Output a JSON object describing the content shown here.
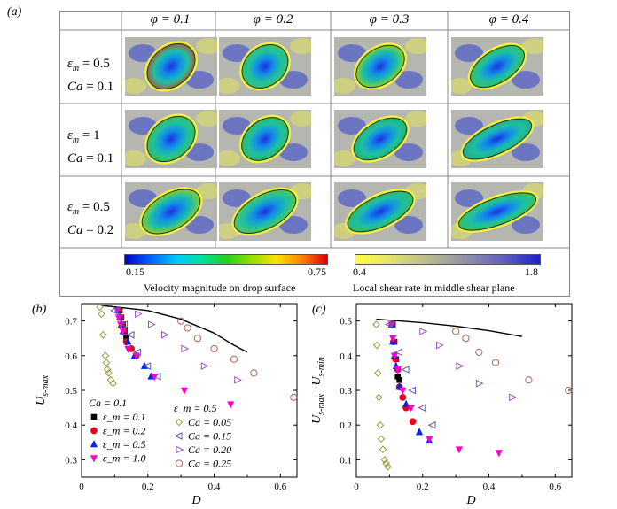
{
  "panel_a": {
    "label": "(a)",
    "columns": [
      "φ = 0.1",
      "φ = 0.2",
      "φ = 0.3",
      "φ = 0.4"
    ],
    "rows": [
      {
        "eps": "ε",
        "eps_sub": "m",
        "eps_val": "= 0.5",
        "ca": "Ca",
        "ca_val": "= 0.1"
      },
      {
        "eps": "ε",
        "eps_sub": "m",
        "eps_val": "= 1",
        "ca": "Ca",
        "ca_val": "= 0.1"
      },
      {
        "eps": "ε",
        "eps_sub": "m",
        "eps_val": "= 0.5",
        "ca": "Ca",
        "ca_val": "= 0.2"
      }
    ],
    "colorbar_velocity": {
      "min": "0.15",
      "max": "0.75",
      "title": "Velocity magnitude on drop surface"
    },
    "colorbar_shear": {
      "min": "0.4",
      "max": "1.8",
      "title": "Local shear rate in middle shear plane"
    }
  },
  "chart_data": [
    {
      "panel": "(b)",
      "type": "scatter",
      "xlabel": "D",
      "ylabel_main": "U",
      "ylabel_sub": "s-max",
      "xlim": [
        0,
        0.65
      ],
      "ylim": [
        0.25,
        0.75
      ],
      "xticks": [
        "0",
        "0.2",
        "0.4",
        "0.6"
      ],
      "yticks": [
        "0.3",
        "0.4",
        "0.5",
        "0.6",
        "0.7"
      ],
      "series": [
        {
          "name": "ε_m = 0.1",
          "marker": "square",
          "color": "#000000",
          "points": [
            [
              0.115,
              0.73
            ],
            [
              0.12,
              0.71
            ],
            [
              0.125,
              0.69
            ],
            [
              0.13,
              0.67
            ],
            [
              0.135,
              0.65
            ]
          ]
        },
        {
          "name": "ε_m = 0.2",
          "marker": "circle",
          "color": "#e8001c",
          "points": [
            [
              0.112,
              0.73
            ],
            [
              0.118,
              0.71
            ],
            [
              0.122,
              0.69
            ],
            [
              0.128,
              0.67
            ],
            [
              0.135,
              0.64
            ],
            [
              0.15,
              0.62
            ],
            [
              0.165,
              0.6
            ]
          ]
        },
        {
          "name": "ε_m = 0.5",
          "marker": "triangle-up",
          "color": "#0024e6",
          "points": [
            [
              0.11,
              0.73
            ],
            [
              0.115,
              0.71
            ],
            [
              0.12,
              0.69
            ],
            [
              0.125,
              0.67
            ],
            [
              0.14,
              0.64
            ],
            [
              0.16,
              0.6
            ],
            [
              0.19,
              0.57
            ],
            [
              0.21,
              0.54
            ]
          ]
        },
        {
          "name": "ε_m = 1.0",
          "marker": "triangle-down",
          "color": "#ff00cc",
          "points": [
            [
              0.108,
              0.73
            ],
            [
              0.112,
              0.71
            ],
            [
              0.118,
              0.69
            ],
            [
              0.125,
              0.67
            ],
            [
              0.14,
              0.62
            ],
            [
              0.165,
              0.6
            ],
            [
              0.22,
              0.54
            ],
            [
              0.31,
              0.5
            ],
            [
              0.45,
              0.46
            ]
          ]
        },
        {
          "name": "Ca = 0.05",
          "marker": "diamond-open",
          "color": "#9a9a40",
          "points": [
            [
              0.055,
              0.74
            ],
            [
              0.06,
              0.72
            ],
            [
              0.065,
              0.66
            ],
            [
              0.072,
              0.6
            ],
            [
              0.075,
              0.58
            ],
            [
              0.078,
              0.56
            ],
            [
              0.082,
              0.55
            ],
            [
              0.088,
              0.53
            ],
            [
              0.095,
              0.52
            ]
          ]
        },
        {
          "name": "Ca = 0.15",
          "marker": "triangle-left-open",
          "color": "#5a5ab4",
          "points": [
            [
              0.1,
              0.73
            ],
            [
              0.13,
              0.69
            ],
            [
              0.15,
              0.66
            ],
            [
              0.17,
              0.61
            ],
            [
              0.2,
              0.57
            ],
            [
              0.23,
              0.54
            ]
          ]
        },
        {
          "name": "Ca = 0.20",
          "marker": "triangle-right-open",
          "color": "#a050c8",
          "points": [
            [
              0.17,
              0.72
            ],
            [
              0.21,
              0.69
            ],
            [
              0.25,
              0.66
            ],
            [
              0.31,
              0.62
            ],
            [
              0.37,
              0.57
            ],
            [
              0.47,
              0.53
            ]
          ]
        },
        {
          "name": "Ca = 0.25",
          "marker": "circle-open",
          "color": "#b46450",
          "points": [
            [
              0.3,
              0.7
            ],
            [
              0.32,
              0.68
            ],
            [
              0.35,
              0.65
            ],
            [
              0.4,
              0.62
            ],
            [
              0.46,
              0.59
            ],
            [
              0.52,
              0.55
            ],
            [
              0.64,
              0.48
            ]
          ]
        }
      ],
      "theory_line": [
        [
          0.06,
          0.745
        ],
        [
          0.2,
          0.73
        ],
        [
          0.3,
          0.705
        ],
        [
          0.4,
          0.665
        ],
        [
          0.46,
          0.63
        ],
        [
          0.5,
          0.61
        ]
      ],
      "legend_left": {
        "title": "Ca = 0.1",
        "entries": [
          "ε_m = 0.1",
          "ε_m = 0.2",
          "ε_m = 0.5",
          "ε_m = 1.0"
        ]
      },
      "legend_right": {
        "title": "ε_m = 0.5",
        "entries": [
          "Ca = 0.05",
          "Ca = 0.15",
          "Ca = 0.20",
          "Ca = 0.25"
        ]
      }
    },
    {
      "panel": "(c)",
      "type": "scatter",
      "xlabel": "D",
      "ylabel_main": "U",
      "ylabel_sub": "s-max",
      "ylabel_main2": "−U",
      "ylabel_sub2": "s-min",
      "xlim": [
        0,
        0.65
      ],
      "ylim": [
        0.05,
        0.55
      ],
      "xticks": [
        "0",
        "0.2",
        "0.4",
        "0.6"
      ],
      "yticks": [
        "0.1",
        "0.2",
        "0.3",
        "0.4",
        "0.5"
      ],
      "series": [
        {
          "name": "ε_m = 0.1",
          "marker": "square",
          "color": "#000000",
          "points": [
            [
              0.11,
              0.49
            ],
            [
              0.115,
              0.44
            ],
            [
              0.12,
              0.39
            ],
            [
              0.125,
              0.34
            ],
            [
              0.13,
              0.33
            ]
          ]
        },
        {
          "name": "ε_m = 0.2",
          "marker": "circle",
          "color": "#e8001c",
          "points": [
            [
              0.108,
              0.49
            ],
            [
              0.112,
              0.44
            ],
            [
              0.118,
              0.39
            ],
            [
              0.125,
              0.36
            ],
            [
              0.13,
              0.31
            ],
            [
              0.14,
              0.28
            ],
            [
              0.15,
              0.25
            ],
            [
              0.17,
              0.21
            ]
          ]
        },
        {
          "name": "ε_m = 0.5",
          "marker": "triangle-up",
          "color": "#0024e6",
          "points": [
            [
              0.107,
              0.49
            ],
            [
              0.11,
              0.44
            ],
            [
              0.115,
              0.4
            ],
            [
              0.12,
              0.37
            ],
            [
              0.13,
              0.31
            ],
            [
              0.15,
              0.26
            ],
            [
              0.19,
              0.18
            ],
            [
              0.22,
              0.155
            ]
          ]
        },
        {
          "name": "ε_m = 1.0",
          "marker": "triangle-down",
          "color": "#ff00cc",
          "points": [
            [
              0.106,
              0.49
            ],
            [
              0.11,
              0.45
            ],
            [
              0.115,
              0.4
            ],
            [
              0.125,
              0.36
            ],
            [
              0.14,
              0.3
            ],
            [
              0.165,
              0.25
            ],
            [
              0.22,
              0.16
            ],
            [
              0.31,
              0.13
            ],
            [
              0.43,
              0.12
            ]
          ]
        },
        {
          "name": "Ca = 0.05",
          "marker": "diamond-open",
          "color": "#9a9a40",
          "points": [
            [
              0.06,
              0.49
            ],
            [
              0.062,
              0.43
            ],
            [
              0.065,
              0.35
            ],
            [
              0.068,
              0.28
            ],
            [
              0.072,
              0.2
            ],
            [
              0.075,
              0.16
            ],
            [
              0.08,
              0.13
            ],
            [
              0.085,
              0.1
            ],
            [
              0.09,
              0.09
            ],
            [
              0.095,
              0.08
            ]
          ]
        },
        {
          "name": "Ca = 0.15",
          "marker": "triangle-left-open",
          "color": "#5a5ab4",
          "points": [
            [
              0.1,
              0.49
            ],
            [
              0.13,
              0.41
            ],
            [
              0.15,
              0.36
            ],
            [
              0.17,
              0.3
            ],
            [
              0.2,
              0.25
            ],
            [
              0.23,
              0.2
            ]
          ]
        },
        {
          "name": "Ca = 0.20",
          "marker": "triangle-right-open",
          "color": "#a050c8",
          "points": [
            [
              0.2,
              0.47
            ],
            [
              0.25,
              0.43
            ],
            [
              0.31,
              0.37
            ],
            [
              0.37,
              0.32
            ],
            [
              0.47,
              0.28
            ]
          ]
        },
        {
          "name": "Ca = 0.25",
          "marker": "circle-open",
          "color": "#b46450",
          "points": [
            [
              0.3,
              0.47
            ],
            [
              0.33,
              0.45
            ],
            [
              0.37,
              0.41
            ],
            [
              0.42,
              0.38
            ],
            [
              0.52,
              0.33
            ],
            [
              0.64,
              0.3
            ]
          ]
        }
      ],
      "theory_line": [
        [
          0.06,
          0.505
        ],
        [
          0.2,
          0.495
        ],
        [
          0.3,
          0.485
        ],
        [
          0.4,
          0.472
        ],
        [
          0.5,
          0.455
        ]
      ]
    }
  ]
}
